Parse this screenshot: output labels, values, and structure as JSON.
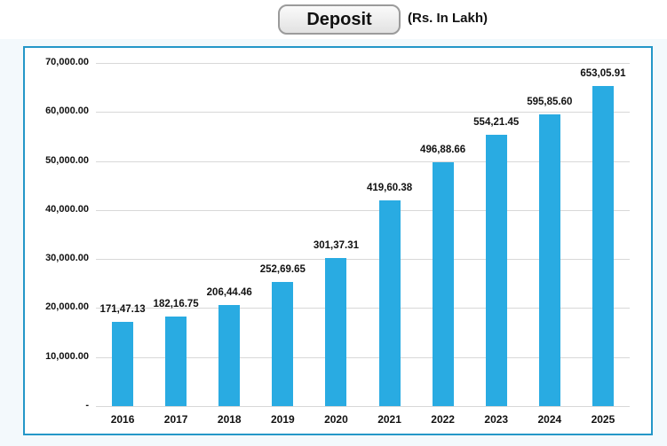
{
  "header": {
    "title": "Deposit",
    "unit_label": "(Rs. In Lakh)"
  },
  "chart_data": {
    "type": "bar",
    "title": "Deposit",
    "unit": "Rs. In Lakh",
    "categories": [
      "2016",
      "2017",
      "2018",
      "2019",
      "2020",
      "2021",
      "2022",
      "2023",
      "2024",
      "2025"
    ],
    "values": [
      17147.13,
      18216.75,
      20644.46,
      25269.65,
      30137.31,
      41960.38,
      49688.66,
      55421.45,
      59585.6,
      65305.91
    ],
    "value_labels": [
      "171,47.13",
      "182,16.75",
      "206,44.46",
      "252,69.65",
      "301,37.31",
      "419,60.38",
      "496,88.66",
      "554,21.45",
      "595,85.60",
      "653,05.91"
    ],
    "y_ticks": [
      {
        "value": 70000,
        "label": "70,000.00"
      },
      {
        "value": 60000,
        "label": "60,000.00"
      },
      {
        "value": 50000,
        "label": "50,000.00"
      },
      {
        "value": 40000,
        "label": "40,000.00"
      },
      {
        "value": 30000,
        "label": "30,000.00"
      },
      {
        "value": 20000,
        "label": "20,000.00"
      },
      {
        "value": 10000,
        "label": "10,000.00"
      },
      {
        "value": 0,
        "label": "-"
      }
    ],
    "ylim": [
      0,
      70000
    ],
    "xlabel": "",
    "ylabel": "",
    "legend": "none",
    "grid": true,
    "bar_color": "#29abe2",
    "gridline_color": "#d8d8d8",
    "panel_border_color": "#2497c8"
  }
}
